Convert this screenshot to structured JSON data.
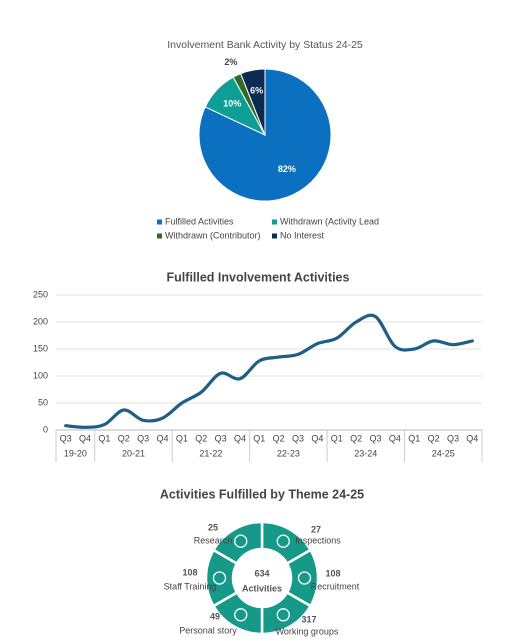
{
  "charts": [
    {
      "type": "pie",
      "title": "Involvement Bank Activity by Status 24-25",
      "series": [
        {
          "name": "Fulfilled Activities",
          "color": "#0b70c0",
          "values": [
            82
          ],
          "value_labels": [
            "82%"
          ]
        },
        {
          "name": "Withdrawn (Activity Lead",
          "color": "#0f9e96",
          "values": [
            10
          ],
          "value_labels": [
            "10%"
          ]
        },
        {
          "name": "Withdrawn (Contributor)",
          "color": "#2f6b26",
          "values": [
            2
          ],
          "value_labels": [
            "2%"
          ]
        },
        {
          "name": "No Interest",
          "color": "#0c2a52",
          "values": [
            6
          ],
          "value_labels": [
            "6%"
          ]
        }
      ]
    },
    {
      "type": "line",
      "title": "Fulfilled Involvement Activities",
      "color": "#1f5f86",
      "groups": [
        {
          "label": "19-20",
          "categories": [
            "Q3",
            "Q4"
          ]
        },
        {
          "label": "20-21",
          "categories": [
            "Q1",
            "Q2",
            "Q3",
            "Q4"
          ]
        },
        {
          "label": "21-22",
          "categories": [
            "Q1",
            "Q2",
            "Q3",
            "Q4"
          ]
        },
        {
          "label": "22-23",
          "categories": [
            "Q1",
            "Q2",
            "Q3",
            "Q4"
          ]
        },
        {
          "label": "23-24",
          "categories": [
            "Q1",
            "Q2",
            "Q3",
            "Q4"
          ]
        },
        {
          "label": "24-25",
          "categories": [
            "Q1",
            "Q2",
            "Q3",
            "Q4"
          ]
        }
      ],
      "values": [
        8,
        5,
        10,
        37,
        18,
        22,
        50,
        70,
        105,
        95,
        128,
        135,
        140,
        160,
        170,
        200,
        210,
        155,
        150,
        165,
        158,
        165
      ],
      "ylim": [
        0,
        250
      ],
      "yticks": [
        0,
        50,
        100,
        150,
        200,
        250
      ],
      "grid": true
    },
    {
      "type": "theme-wheel",
      "title": "Activities Fulfilled by Theme 24-25",
      "color": "#17998a",
      "total": 634,
      "total_label": "Activities",
      "items": [
        {
          "label": "Inspections",
          "value": 27
        },
        {
          "label": "Recruitment",
          "value": 108
        },
        {
          "label": "Working groups",
          "value": 317
        },
        {
          "label": "Personal story",
          "value": 49
        },
        {
          "label": "Staff Training",
          "value": 108
        },
        {
          "label": "Research",
          "value": 25
        }
      ]
    }
  ]
}
